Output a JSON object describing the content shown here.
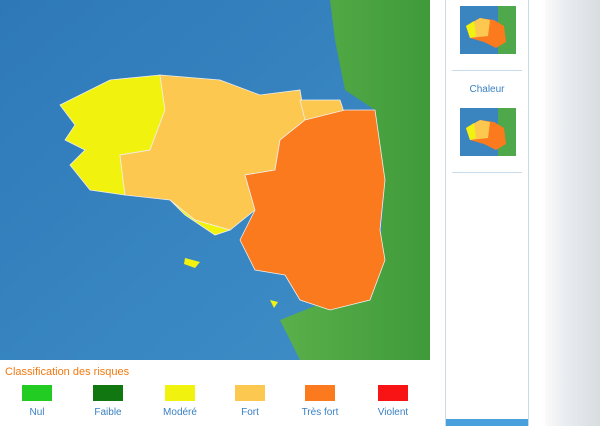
{
  "legend": {
    "title": "Classification des risques",
    "items": [
      {
        "label": "Nul",
        "color": "#22cc22"
      },
      {
        "label": "Faible",
        "color": "#117711"
      },
      {
        "label": "Modéré",
        "color": "#f2f20f"
      },
      {
        "label": "Fort",
        "color": "#fdc850"
      },
      {
        "label": "Très fort",
        "color": "#fb7a1e"
      },
      {
        "label": "Violent",
        "color": "#f81414"
      }
    ]
  },
  "sidebar": {
    "items": [
      {
        "label": "Chaleur"
      }
    ]
  }
}
